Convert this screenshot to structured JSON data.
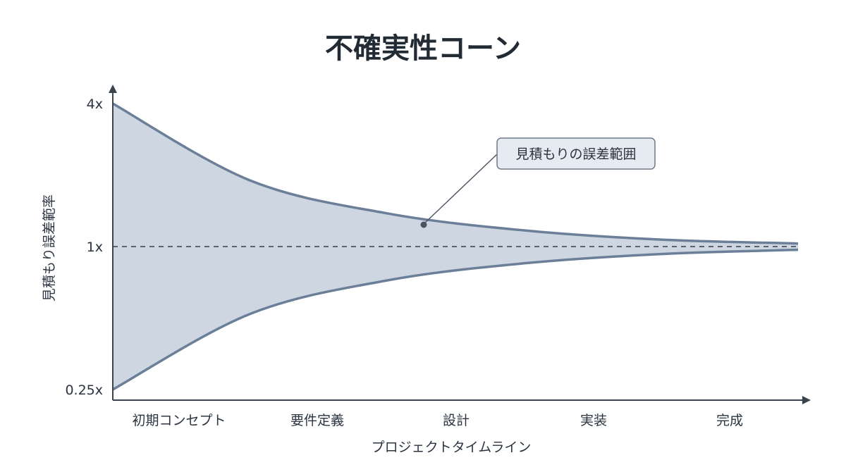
{
  "chart_data": {
    "type": "area",
    "title": "不確実性コーン",
    "xlabel": "プロジェクトタイムライン",
    "ylabel": "見積もり誤差範率",
    "categories": [
      "初期コンセプト",
      "要件定義",
      "設計",
      "実装",
      "完成"
    ],
    "y_scale": "log",
    "ylim": [
      0.25,
      4
    ],
    "y_ticks": [
      {
        "value": 4,
        "label": "4x"
      },
      {
        "value": 1,
        "label": "1x"
      },
      {
        "value": 0.25,
        "label": "0.25x"
      }
    ],
    "series": [
      {
        "role": "upper",
        "x": [
          0,
          1,
          2,
          3,
          4,
          5
        ],
        "values": [
          4,
          1.9,
          1.38,
          1.17,
          1.07,
          1.03
        ]
      },
      {
        "role": "lower",
        "x": [
          0,
          1,
          2,
          3,
          4,
          5
        ],
        "values": [
          0.25,
          0.52,
          0.72,
          0.85,
          0.93,
          0.97
        ]
      }
    ],
    "reference_line": {
      "value": 1,
      "style": "dashed"
    },
    "annotation": {
      "text": "見積もりの誤差範囲"
    },
    "colors": {
      "fill": "#cdd6e1",
      "edge": "#6b7f99",
      "axis": "#3a4350",
      "callout_bg": "#e6ebf1",
      "callout_border": "#6f7b88"
    },
    "grid": false,
    "legend": "none"
  }
}
